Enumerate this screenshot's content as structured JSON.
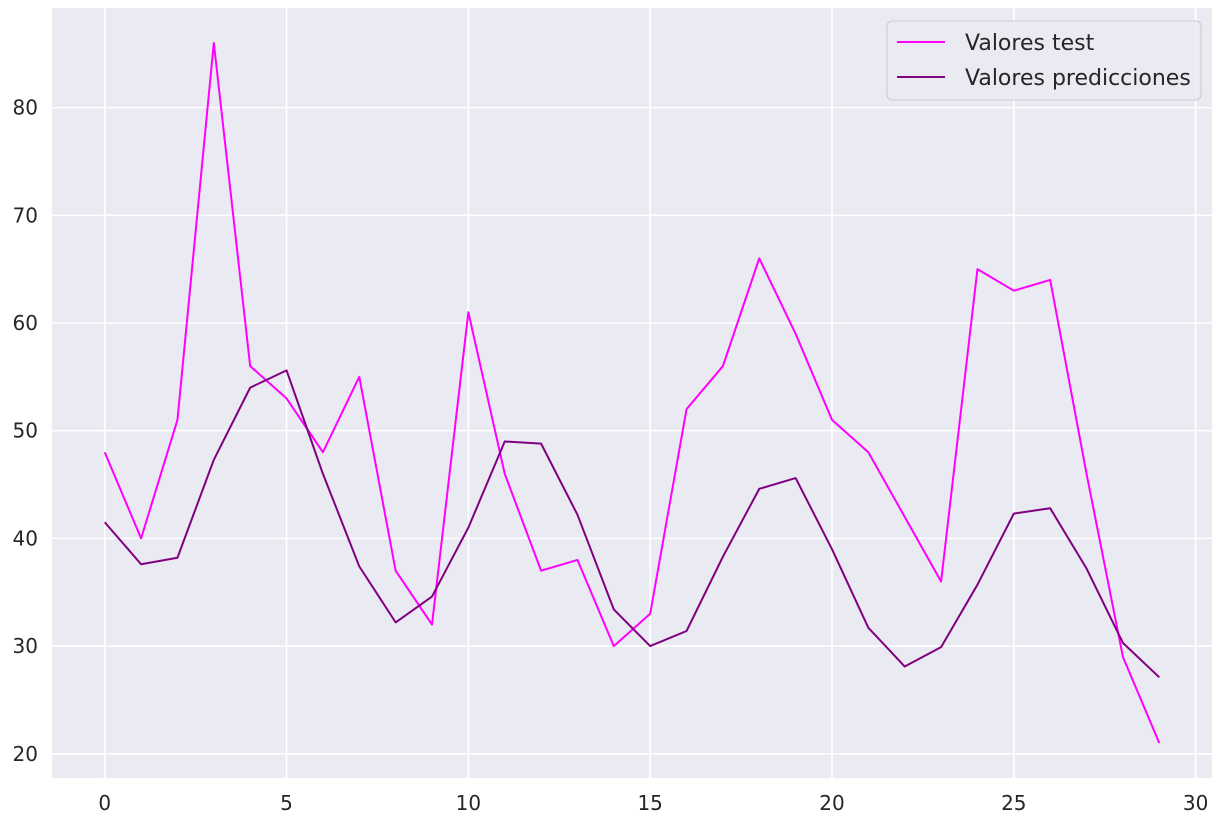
{
  "chart_data": {
    "type": "line",
    "title": "",
    "xlabel": "",
    "ylabel": "",
    "x": [
      0,
      1,
      2,
      3,
      4,
      5,
      6,
      7,
      8,
      9,
      10,
      11,
      12,
      13,
      14,
      15,
      16,
      17,
      18,
      19,
      20,
      21,
      22,
      23,
      24,
      25,
      26,
      27,
      28,
      29
    ],
    "series": [
      {
        "name": "Valores test",
        "color": "#ff00ff",
        "values": [
          48,
          40,
          51,
          86,
          56,
          53,
          48,
          55,
          37,
          32,
          61,
          46,
          37,
          38,
          30,
          33,
          52,
          56,
          66,
          59,
          51,
          48,
          42,
          36,
          65,
          63,
          64,
          46,
          29,
          21
        ]
      },
      {
        "name": "Valores predicciones",
        "color": "#800080",
        "values": [
          41.5,
          37.6,
          38.2,
          47.3,
          54.0,
          55.6,
          46.0,
          37.4,
          32.2,
          34.6,
          41.0,
          49.0,
          48.8,
          42.2,
          33.4,
          30.0,
          31.4,
          38.3,
          44.6,
          45.6,
          39.0,
          31.7,
          28.1,
          29.9,
          35.7,
          42.3,
          42.8,
          37.2,
          30.3,
          27.1
        ]
      }
    ],
    "xticks": [
      0,
      5,
      10,
      15,
      20,
      25,
      30
    ],
    "yticks": [
      20,
      30,
      40,
      50,
      60,
      70,
      80
    ],
    "xlim": [
      -1.45,
      30.45
    ],
    "ylim": [
      17.75,
      89.25
    ],
    "grid": true,
    "legend_position": "top-right",
    "background_color": "#eaeaf2",
    "grid_color": "#ffffff"
  }
}
